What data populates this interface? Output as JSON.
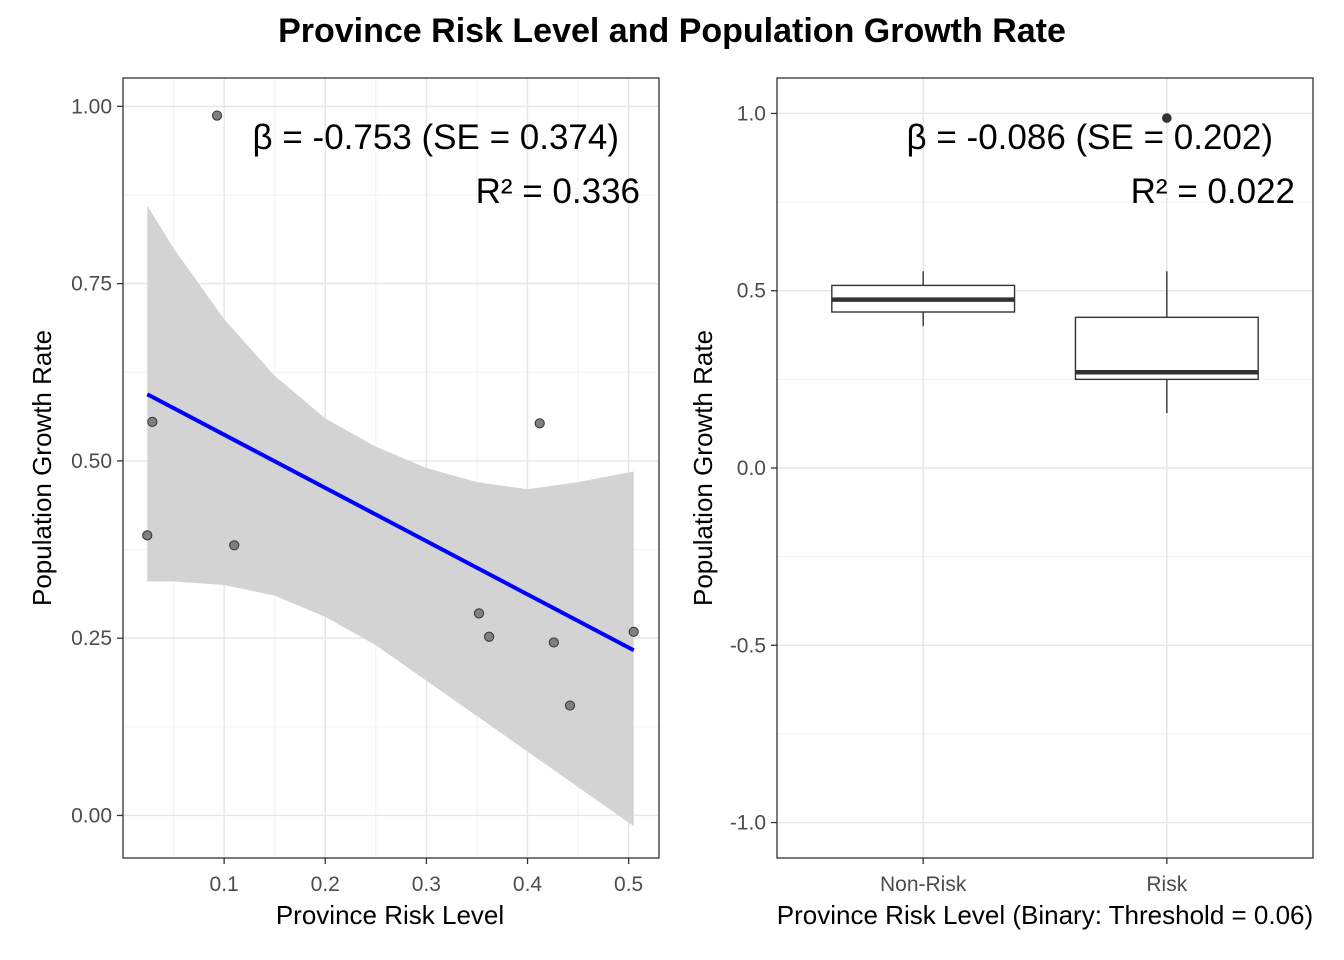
{
  "figure": {
    "title": "Province Risk Level and Population Growth Rate"
  },
  "chart_data": [
    {
      "type": "scatter",
      "xlabel": "Province Risk Level",
      "ylabel": "Population Growth Rate",
      "xlim": [
        0.0,
        0.53
      ],
      "ylim": [
        -0.06,
        1.04
      ],
      "x_ticks": [
        0.1,
        0.2,
        0.3,
        0.4,
        0.5
      ],
      "x_tick_labels": [
        "0.1",
        "0.2",
        "0.3",
        "0.4",
        "0.5"
      ],
      "y_ticks": [
        0.0,
        0.25,
        0.5,
        0.75,
        1.0
      ],
      "y_tick_labels": [
        "0.00",
        "0.25",
        "0.50",
        "0.75",
        "1.00"
      ],
      "grid": true,
      "points": [
        {
          "x": 0.024,
          "y": 0.395
        },
        {
          "x": 0.029,
          "y": 0.555
        },
        {
          "x": 0.093,
          "y": 0.987
        },
        {
          "x": 0.11,
          "y": 0.381
        },
        {
          "x": 0.352,
          "y": 0.285
        },
        {
          "x": 0.362,
          "y": 0.252
        },
        {
          "x": 0.412,
          "y": 0.553
        },
        {
          "x": 0.426,
          "y": 0.244
        },
        {
          "x": 0.442,
          "y": 0.155
        },
        {
          "x": 0.505,
          "y": 0.259
        }
      ],
      "regression": {
        "x": [
          0.024,
          0.505
        ],
        "y": [
          0.594,
          0.233
        ],
        "color": "#0000ff"
      },
      "confidence_band": {
        "x": [
          0.024,
          0.05,
          0.1,
          0.15,
          0.2,
          0.25,
          0.3,
          0.35,
          0.4,
          0.45,
          0.505
        ],
        "upper": [
          0.86,
          0.8,
          0.7,
          0.62,
          0.56,
          0.52,
          0.49,
          0.47,
          0.46,
          0.47,
          0.485
        ],
        "lower": [
          0.33,
          0.33,
          0.325,
          0.31,
          0.28,
          0.24,
          0.19,
          0.14,
          0.09,
          0.04,
          -0.015
        ],
        "color": "#d3d3d3"
      },
      "annotations": [
        "β = -0.753 (SE = 0.374)",
        "R² = 0.336"
      ]
    },
    {
      "type": "box",
      "xlabel": "Province Risk Level (Binary: Threshold = 0.06)",
      "ylabel": "Population Growth Rate",
      "ylim": [
        -1.1,
        1.1
      ],
      "y_ticks": [
        -1.0,
        -0.5,
        0.0,
        0.5,
        1.0
      ],
      "y_tick_labels": [
        "-1.0",
        "-0.5",
        "0.0",
        "0.5",
        "1.0"
      ],
      "categories": [
        "Non-Risk",
        "Risk"
      ],
      "grid": true,
      "boxes": [
        {
          "category": "Non-Risk",
          "min": 0.4,
          "q1": 0.44,
          "median": 0.475,
          "q3": 0.515,
          "max": 0.555,
          "outliers": []
        },
        {
          "category": "Risk",
          "min": 0.155,
          "q1": 0.25,
          "median": 0.27,
          "q3": 0.425,
          "max": 0.555,
          "outliers": [
            0.987
          ]
        }
      ],
      "annotations": [
        "β = -0.086 (SE = 0.202)",
        "R² = 0.022"
      ]
    }
  ]
}
